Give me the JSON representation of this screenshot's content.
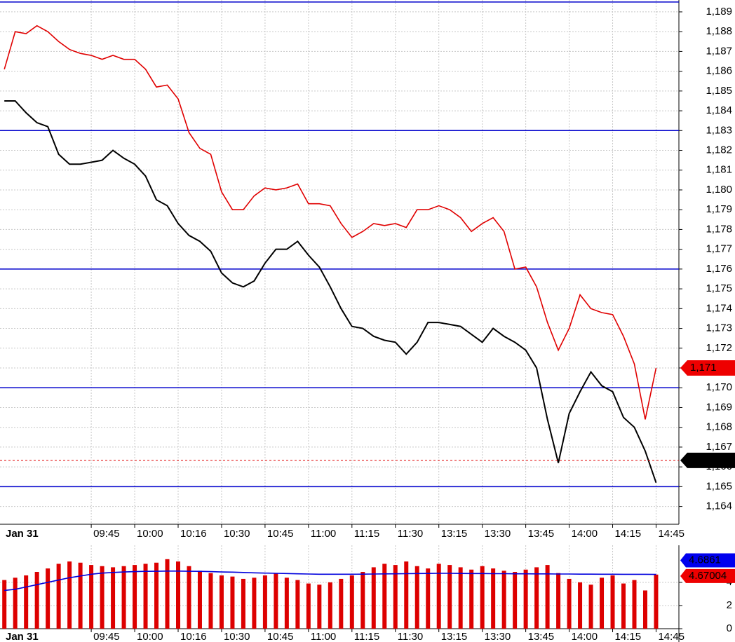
{
  "chart_data": [
    {
      "type": "line",
      "date_label": "Jan 31",
      "x": [
        -8,
        -7,
        -6,
        -5,
        -4,
        -3,
        -2,
        -1,
        0,
        1,
        2,
        3,
        4,
        5,
        6,
        7,
        8,
        9,
        10,
        11,
        12,
        13,
        14,
        15,
        16,
        17,
        18,
        19,
        20,
        21,
        22,
        23,
        24,
        25,
        26,
        27,
        28,
        29,
        30,
        31,
        32,
        33,
        34,
        35,
        36,
        37,
        38,
        39,
        40,
        41,
        42,
        43,
        44,
        45,
        46,
        47,
        48,
        49,
        50,
        51,
        52
      ],
      "series": [
        {
          "color": "#000000",
          "values": [
            1184.5,
            1184.5,
            1183.9,
            1183.4,
            1183.2,
            1181.8,
            1181.3,
            1181.3,
            1181.4,
            1181.5,
            1182.0,
            1181.6,
            1181.3,
            1180.7,
            1179.5,
            1179.2,
            1178.3,
            1177.7,
            1177.4,
            1176.9,
            1175.8,
            1175.3,
            1175.1,
            1175.4,
            1176.3,
            1177.0,
            1177.0,
            1177.4,
            1176.7,
            1176.1,
            1175.1,
            1174.0,
            1173.1,
            1173.0,
            1172.6,
            1172.4,
            1172.3,
            1171.7,
            1172.3,
            1173.3,
            1173.3,
            1173.2,
            1173.1,
            1172.7,
            1172.3,
            1173.0,
            1172.6,
            1172.3,
            1171.9,
            1171.0,
            1168.4,
            1166.2,
            1168.7,
            1169.8,
            1170.8,
            1170.1,
            1169.8,
            1168.5,
            1168.0,
            1166.8,
            1165.2
          ]
        },
        {
          "color": "#e00000",
          "values": [
            1186.1,
            1188.0,
            1187.9,
            1188.3,
            1188.0,
            1187.5,
            1187.1,
            1186.9,
            1186.8,
            1186.6,
            1186.8,
            1186.6,
            1186.6,
            1186.1,
            1185.2,
            1185.3,
            1184.6,
            1182.9,
            1182.1,
            1181.8,
            1179.9,
            1179.0,
            1179.0,
            1179.7,
            1180.1,
            1180.0,
            1180.1,
            1180.3,
            1179.3,
            1179.3,
            1179.2,
            1178.3,
            1177.6,
            1177.9,
            1178.3,
            1178.2,
            1178.3,
            1178.1,
            1179.0,
            1179.0,
            1179.2,
            1179.0,
            1178.6,
            1177.9,
            1178.3,
            1178.6,
            1177.9,
            1176.0,
            1176.1,
            1175.1,
            1173.3,
            1171.9,
            1173.0,
            1174.7,
            1174.0,
            1173.8,
            1173.7,
            1172.6,
            1171.2,
            1168.4,
            1171.0
          ]
        }
      ],
      "levels": [
        1189.5,
        1183,
        1176,
        1170,
        1165
      ],
      "level_color": "#0000cc",
      "price_markers": [
        {
          "value": 1171,
          "label": "1,171",
          "color": "#ee0000"
        },
        {
          "value": 1166.33,
          "label": "1,166.33",
          "color": "#000000",
          "dashed_line": true
        }
      ],
      "xlim": [
        -8.4,
        54.1
      ],
      "xticks": [
        {
          "value": 0,
          "label": "09:45"
        },
        {
          "value": 4,
          "label": "10:00"
        },
        {
          "value": 8,
          "label": "10:16"
        },
        {
          "value": 12,
          "label": "10:30"
        },
        {
          "value": 16,
          "label": "10:45"
        },
        {
          "value": 20,
          "label": "11:00"
        },
        {
          "value": 24,
          "label": "11:15"
        },
        {
          "value": 28,
          "label": "11:30"
        },
        {
          "value": 32,
          "label": "13:15"
        },
        {
          "value": 36,
          "label": "13:30"
        },
        {
          "value": 40,
          "label": "13:45"
        },
        {
          "value": 44,
          "label": "14:00"
        },
        {
          "value": 48,
          "label": "14:15"
        },
        {
          "value": 52,
          "label": "14:45"
        }
      ],
      "ylim": [
        1163.1,
        1189.6
      ],
      "yticks": [
        {
          "value": 1164,
          "label": "1,164"
        },
        {
          "value": 1165,
          "label": "1,165"
        },
        {
          "value": 1166,
          "label": "1,166"
        },
        {
          "value": 1167,
          "label": "1,167"
        },
        {
          "value": 1168,
          "label": "1,168"
        },
        {
          "value": 1169,
          "label": "1,169"
        },
        {
          "value": 1170,
          "label": "1,170"
        },
        {
          "value": 1171,
          "label": "1,171"
        },
        {
          "value": 1172,
          "label": "1,172"
        },
        {
          "value": 1173,
          "label": "1,173"
        },
        {
          "value": 1174,
          "label": "1,174"
        },
        {
          "value": 1175,
          "label": "1,175"
        },
        {
          "value": 1176,
          "label": "1,176"
        },
        {
          "value": 1177,
          "label": "1,177"
        },
        {
          "value": 1178,
          "label": "1,178"
        },
        {
          "value": 1179,
          "label": "1,179"
        },
        {
          "value": 1180,
          "label": "1,180"
        },
        {
          "value": 1181,
          "label": "1,181"
        },
        {
          "value": 1182,
          "label": "1,182"
        },
        {
          "value": 1183,
          "label": "1,183"
        },
        {
          "value": 1184,
          "label": "1,184"
        },
        {
          "value": 1185,
          "label": "1,185"
        },
        {
          "value": 1186,
          "label": "1,186"
        },
        {
          "value": 1187,
          "label": "1,187"
        },
        {
          "value": 1188,
          "label": "1,188"
        },
        {
          "value": 1189,
          "label": "1,189"
        }
      ],
      "grid": true
    },
    {
      "type": "bar",
      "date_label": "Jan 31",
      "x": [
        -8,
        -7,
        -6,
        -5,
        -4,
        -3,
        -2,
        -1,
        0,
        1,
        2,
        3,
        4,
        5,
        6,
        7,
        8,
        9,
        10,
        11,
        12,
        13,
        14,
        15,
        16,
        17,
        18,
        19,
        20,
        21,
        22,
        23,
        24,
        25,
        26,
        27,
        28,
        29,
        30,
        31,
        32,
        33,
        34,
        35,
        36,
        37,
        38,
        39,
        40,
        41,
        42,
        43,
        44,
        45,
        46,
        47,
        48,
        49,
        50,
        51,
        52
      ],
      "values": [
        4.2,
        4.4,
        4.6,
        4.9,
        5.2,
        5.6,
        5.8,
        5.7,
        5.5,
        5.4,
        5.3,
        5.4,
        5.5,
        5.6,
        5.7,
        6.0,
        5.8,
        5.4,
        5.0,
        4.8,
        4.6,
        4.5,
        4.3,
        4.4,
        4.6,
        4.8,
        4.4,
        4.2,
        3.9,
        3.8,
        4.0,
        4.3,
        4.6,
        4.9,
        5.3,
        5.6,
        5.5,
        5.8,
        5.4,
        5.2,
        5.6,
        5.5,
        5.3,
        5.1,
        5.4,
        5.2,
        5.0,
        4.9,
        5.1,
        5.3,
        5.5,
        4.8,
        4.3,
        4.0,
        3.8,
        4.4,
        4.6,
        3.9,
        4.2,
        3.3,
        4.67
      ],
      "color": "#dd0000",
      "average": {
        "color": "#0000dd",
        "values": [
          3.3,
          3.4,
          3.6,
          3.8,
          4.0,
          4.2,
          4.4,
          4.55,
          4.7,
          4.8,
          4.85,
          4.9,
          4.93,
          4.95,
          4.96,
          4.97,
          4.97,
          4.96,
          4.95,
          4.93,
          4.9,
          4.88,
          4.85,
          4.82,
          4.8,
          4.78,
          4.76,
          4.74,
          4.72,
          4.7,
          4.7,
          4.7,
          4.7,
          4.71,
          4.72,
          4.73,
          4.74,
          4.75,
          4.76,
          4.77,
          4.78,
          4.78,
          4.77,
          4.76,
          4.76,
          4.75,
          4.75,
          4.74,
          4.74,
          4.73,
          4.73,
          4.72,
          4.72,
          4.71,
          4.71,
          4.7,
          4.7,
          4.69,
          4.69,
          4.69,
          4.6861
        ]
      },
      "value_markers": [
        {
          "value": 4.6861,
          "label": "4.6861",
          "color": "#0000ee"
        },
        {
          "value": 4.67004,
          "label": "4.67004",
          "color": "#ee0000"
        }
      ],
      "xlim": [
        -8.4,
        54.1
      ],
      "xticks": [
        {
          "value": 0,
          "label": "09:45"
        },
        {
          "value": 4,
          "label": "10:00"
        },
        {
          "value": 8,
          "label": "10:16"
        },
        {
          "value": 12,
          "label": "10:30"
        },
        {
          "value": 16,
          "label": "10:45"
        },
        {
          "value": 20,
          "label": "11:00"
        },
        {
          "value": 24,
          "label": "11:15"
        },
        {
          "value": 28,
          "label": "11:30"
        },
        {
          "value": 32,
          "label": "13:15"
        },
        {
          "value": 36,
          "label": "13:30"
        },
        {
          "value": 40,
          "label": "13:45"
        },
        {
          "value": 44,
          "label": "14:00"
        },
        {
          "value": 48,
          "label": "14:15"
        },
        {
          "value": 52,
          "label": "14:45"
        }
      ],
      "ylim": [
        0,
        7.2
      ],
      "yticks": [
        0,
        2,
        4
      ],
      "grid": true
    }
  ]
}
